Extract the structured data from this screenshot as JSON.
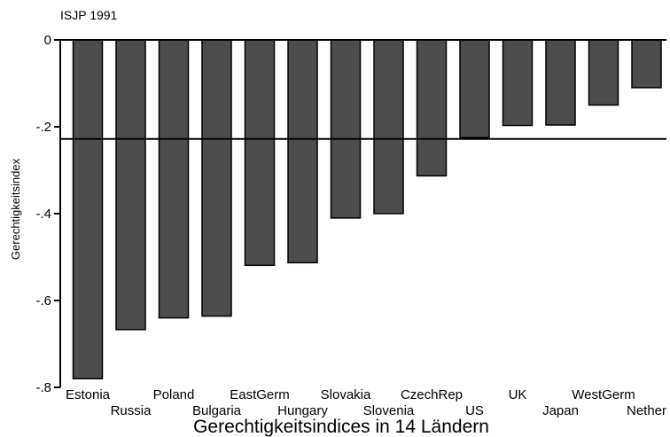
{
  "chart_data": {
    "type": "bar",
    "subtitle": "ISJP 1991",
    "ylabel": "Gerechtigkeitsindex",
    "xlabel": "Gerechtigkeitsindices in 14 Ländern",
    "categories": [
      "Estonia",
      "Russia",
      "Poland",
      "Bulgaria",
      "EastGerm",
      "Hungary",
      "Slovakia",
      "Slovenia",
      "CzechRep",
      "US",
      "UK",
      "Japan",
      "WestGerm",
      "Nether"
    ],
    "values": [
      -0.78,
      -0.667,
      -0.64,
      -0.636,
      -0.519,
      -0.513,
      -0.41,
      -0.4,
      -0.313,
      -0.225,
      -0.197,
      -0.196,
      -0.15,
      -0.11
    ],
    "reference_line": -0.228,
    "ylim": [
      -0.8,
      0
    ],
    "yticks": [
      0,
      -0.2,
      -0.4,
      -0.6,
      -0.8
    ],
    "ytick_labels": [
      "0",
      "-.2",
      "-.4",
      "-.6",
      "-.8"
    ],
    "grid": false,
    "colors": {
      "bar_fill": "#4d4d4d",
      "bar_stroke": "#000000",
      "axis": "#000000"
    }
  }
}
